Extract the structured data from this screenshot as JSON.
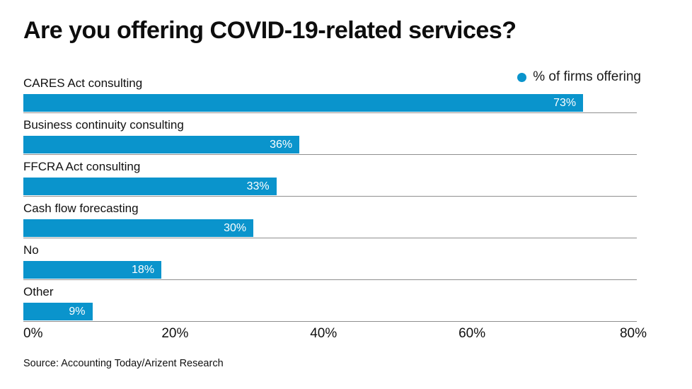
{
  "title": "Are you offering COVID-19-related services?",
  "legend": {
    "label": "% of firms offering",
    "dot_color": "#0a94cc"
  },
  "source": "Source: Accounting Today/Arizent Research",
  "colors": {
    "bar": "#0a94cc",
    "gridline": "#8f8f8f",
    "background": "#ffffff",
    "text": "#111111",
    "value_text": "#ffffff"
  },
  "chart_data": {
    "type": "bar",
    "orientation": "horizontal",
    "title": "Are you offering COVID-19-related services?",
    "legend_label": "% of firms offering",
    "categories": [
      "CARES Act consulting",
      "Business continuity consulting",
      "FFCRA Act consulting",
      "Cash flow forecasting",
      "No",
      "Other"
    ],
    "values": [
      73,
      36,
      33,
      30,
      18,
      9
    ],
    "value_labels": [
      "73%",
      "36%",
      "33%",
      "30%",
      "18%",
      "9%"
    ],
    "x_ticks": [
      "0%",
      "20%",
      "40%",
      "60%",
      "80%"
    ],
    "xlim": [
      0,
      80
    ],
    "xlabel": "",
    "ylabel": "",
    "grid": "per-bar baseline lines",
    "legend_position": "top-right"
  }
}
